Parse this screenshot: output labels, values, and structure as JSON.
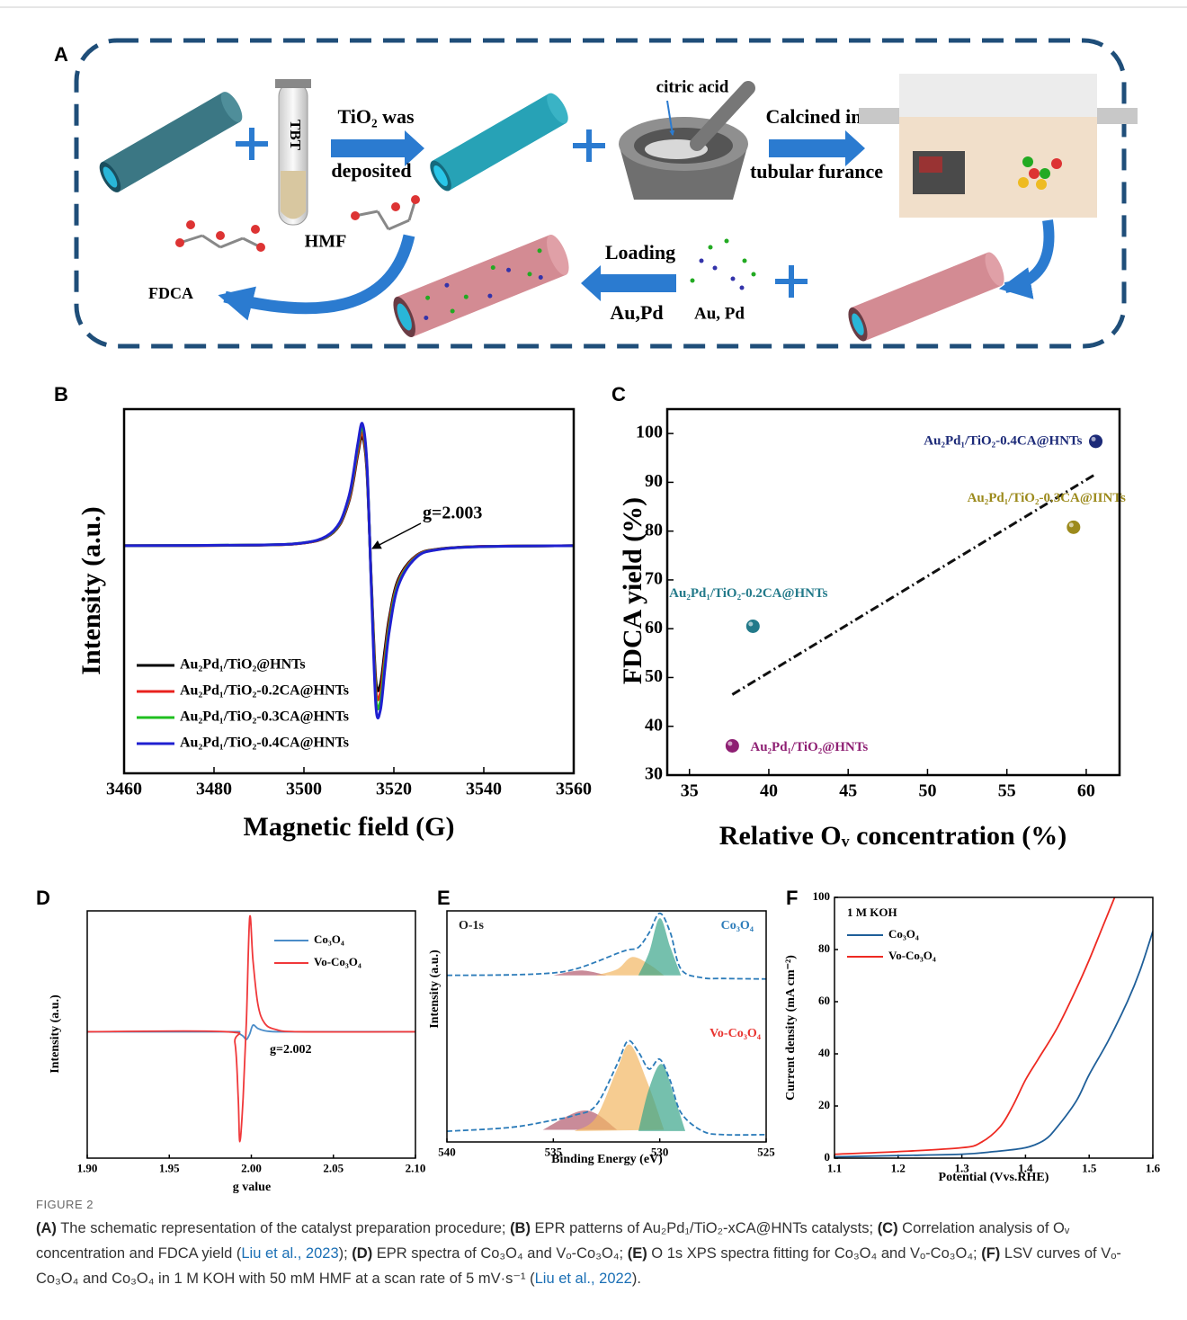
{
  "schematic": {
    "panel": "A",
    "tbt": "TBT",
    "step1_top": "TiO₂ was",
    "step1_bottom": "deposited",
    "citric": "citric acid",
    "step2_top": "Calcined in",
    "step2_bottom": "tubular furance",
    "hmf": "HMF",
    "fdca": "FDCA",
    "step3_top": "Loading",
    "step3_bottom": "Au,Pd",
    "metals": "Au, Pd"
  },
  "chart_data": [
    {
      "panel": "B",
      "type": "line",
      "xlabel": "Magnetic field (G)",
      "ylabel": "Intensity (a.u.)",
      "x": [
        3460,
        3490,
        3500,
        3505,
        3508,
        3510,
        3511,
        3512,
        3513,
        3514,
        3515,
        3516,
        3517,
        3518,
        3519,
        3521,
        3525,
        3530,
        3540,
        3560
      ],
      "xlim": [
        3460,
        3560
      ],
      "xticks": [
        3460,
        3480,
        3500,
        3520,
        3540,
        3560
      ],
      "ylim": [
        -1.25,
        0.75
      ],
      "legend": "lower left",
      "annotation": "g=2.003",
      "series": [
        {
          "name": "Au₂Pd₁/TiO₂@HNTs",
          "color": "#000000",
          "values": [
            0,
            0.003,
            0.015,
            0.046,
            0.116,
            0.242,
            0.357,
            0.504,
            0.6,
            0.406,
            -0.201,
            -0.742,
            -0.761,
            -0.572,
            -0.393,
            -0.184,
            -0.054,
            -0.018,
            -0.004,
            0
          ]
        },
        {
          "name": "Au₂Pd₁/TiO₂-0.2CA@HNTs",
          "color": "#e8211d",
          "values": [
            0,
            0.003,
            0.015,
            0.048,
            0.12,
            0.25,
            0.369,
            0.521,
            0.62,
            0.42,
            -0.213,
            -0.788,
            -0.808,
            -0.608,
            -0.417,
            -0.196,
            -0.057,
            -0.019,
            -0.004,
            0
          ]
        },
        {
          "name": "Au₂Pd₁/TiO₂-0.3CA@HNTs",
          "color": "#1fbf1f",
          "values": [
            0,
            0.004,
            0.016,
            0.05,
            0.125,
            0.263,
            0.387,
            0.546,
            0.65,
            0.44,
            -0.226,
            -0.834,
            -0.856,
            -0.644,
            -0.442,
            -0.207,
            -0.061,
            -0.02,
            -0.005,
            0
          ]
        },
        {
          "name": "Au₂Pd₁/TiO₂-0.4CA@HNTs",
          "color": "#2020d0",
          "values": [
            0,
            0.004,
            0.016,
            0.052,
            0.129,
            0.271,
            0.399,
            0.563,
            0.67,
            0.454,
            -0.238,
            -0.881,
            -0.903,
            -0.679,
            -0.466,
            -0.219,
            -0.064,
            -0.021,
            -0.005,
            0
          ]
        }
      ]
    },
    {
      "panel": "C",
      "type": "scatter",
      "xlabel": "Relative Oᵥ concentration (%)",
      "ylabel": "FDCA yield (%)",
      "xlim": [
        33.6,
        62.1
      ],
      "xticks": [
        35,
        40,
        45,
        50,
        55,
        60
      ],
      "ylim": [
        30,
        105
      ],
      "yticks": [
        30,
        40,
        50,
        60,
        70,
        80,
        90,
        100
      ],
      "trendline": {
        "x": [
          37.7,
          60.5
        ],
        "values": [
          46.5,
          91.5
        ]
      },
      "series": [
        {
          "name": "Au₂Pd₁/TiO₂@HNTs",
          "color": "#8e1f73",
          "x": [
            37.7
          ],
          "values": [
            36
          ]
        },
        {
          "name": "Au₂Pd₁/TiO₂-0.2CA@HNTs",
          "color": "#237a8a",
          "x": [
            39
          ],
          "values": [
            60.5
          ]
        },
        {
          "name": "Au₂Pd₁/TiO₂-0.3CA@IINTs",
          "color": "#9c8a1c",
          "x": [
            59.2
          ],
          "values": [
            80.8
          ]
        },
        {
          "name": "Au₂Pd₁/TiO₂-0.4CA@HNTs",
          "color": "#1c2a78",
          "x": [
            60.6
          ],
          "values": [
            98.4
          ]
        }
      ]
    },
    {
      "panel": "D",
      "type": "line",
      "xlabel": "g value",
      "ylabel": "Intensity (a.u.)",
      "x": [
        1.9,
        1.985,
        1.99,
        1.992,
        1.993,
        1.995,
        1.997,
        1.999,
        2.001,
        2.004,
        2.008,
        2.015,
        2.03,
        2.1
      ],
      "xlim": [
        1.9,
        2.1
      ],
      "xticks": [
        {
          "value": 1.9,
          "label": "1.90"
        },
        1.95,
        {
          "value": 2.0,
          "label": "2.00"
        },
        2.05,
        {
          "value": 2.1,
          "label": "2.10"
        }
      ],
      "ylim": [
        -1.15,
        1.1
      ],
      "legend": "upper right",
      "annotation": "g=2.002",
      "series": [
        {
          "name": "Co₃O₄",
          "color": "#4a8cc8",
          "values": [
            0,
            0,
            0,
            -0.01,
            -0.02,
            -0.04,
            -0.07,
            -0.02,
            0.06,
            0.03,
            0.01,
            0,
            0,
            0
          ]
        },
        {
          "name": "Vo-Co₃O₄",
          "color": "#f0383a",
          "values": [
            0,
            0,
            -0.1,
            -0.6,
            -1.0,
            -0.6,
            0.1,
            1.04,
            0.65,
            0.25,
            0.08,
            0.02,
            0,
            0
          ]
        }
      ]
    },
    {
      "panel": "E",
      "type": "xps",
      "xlabel": "Binding Energy (eV)",
      "ylabel": "Intensity (a.u.)",
      "xlim": [
        540,
        525
      ],
      "xticks": [
        540,
        535,
        530,
        525
      ],
      "ylim": [
        0,
        95
      ],
      "annotations": [
        {
          "text": "O-1s",
          "color": "#222222"
        },
        {
          "text": "Co₃O₄",
          "color": "#2b7bb9"
        },
        {
          "text": "Vo-Co₃O₄",
          "color": "#e8322e"
        }
      ],
      "series": [
        {
          "color": "#b25a6e",
          "fill": true,
          "x": [
            535,
            533.7,
            532.5
          ],
          "values": [
            68.5,
            70.5,
            68.5
          ]
        },
        {
          "color": "#f2b662",
          "fill": true,
          "x": [
            533,
            532,
            531.3,
            530.5,
            529.8
          ],
          "values": [
            68.5,
            71,
            76,
            73,
            68.5
          ]
        },
        {
          "color": "#3aa58a",
          "fill": true,
          "x": [
            531,
            530.5,
            530,
            529.5,
            529
          ],
          "values": [
            68.5,
            78,
            92,
            80,
            68.5
          ]
        },
        {
          "color": "#b25a6e",
          "fill": true,
          "x": [
            535.5,
            533.5,
            532
          ],
          "values": [
            5,
            13,
            5
          ]
        },
        {
          "color": "#f2b662",
          "fill": true,
          "x": [
            534,
            533,
            532,
            531.4,
            530.6,
            529.8
          ],
          "values": [
            4.5,
            10,
            30,
            40,
            25,
            5
          ]
        },
        {
          "color": "#3aa58a",
          "fill": true,
          "x": [
            531,
            530.5,
            529.9,
            529.3,
            528.8
          ],
          "values": [
            4.5,
            22,
            32,
            18,
            4.5
          ]
        },
        {
          "color": "#2b7bb9",
          "dashed": true,
          "x": [
            540,
            537,
            535,
            534,
            533,
            532,
            531.5,
            531,
            530.5,
            530,
            529.5,
            529,
            528,
            527,
            525
          ],
          "values": [
            68.5,
            68.7,
            69.5,
            71,
            74,
            77.5,
            79,
            80,
            86,
            94,
            86,
            71,
            67.5,
            67.2,
            67
          ]
        },
        {
          "color": "#2b7bb9",
          "dashed": true,
          "x": [
            540,
            537,
            535,
            534,
            533,
            532,
            531.5,
            531,
            530.5,
            530,
            529.5,
            529,
            528,
            527,
            525
          ],
          "values": [
            4.4,
            6,
            9,
            11,
            15,
            32,
            41.5,
            37,
            30,
            34,
            25,
            12,
            4.5,
            3,
            3
          ]
        }
      ]
    },
    {
      "panel": "F",
      "type": "line",
      "xlabel": "Potential (Vvs.RHE)",
      "ylabel": "Current density (mA cm⁻²)",
      "xlim": [
        1.1,
        1.6
      ],
      "xticks": [
        1.1,
        1.2,
        1.3,
        1.4,
        1.5,
        1.6
      ],
      "ylim": [
        0,
        100
      ],
      "yticks": [
        0,
        20,
        40,
        60,
        80,
        100
      ],
      "legend": "upper left",
      "legend_title": "1 M KOH",
      "series": [
        {
          "name": "Co₃O₄",
          "color": "#1f5f99",
          "x": [
            1.1,
            1.2,
            1.3,
            1.35,
            1.4,
            1.43,
            1.45,
            1.48,
            1.5,
            1.53,
            1.56,
            1.58,
            1.6
          ],
          "values": [
            0.5,
            1,
            1.5,
            2.5,
            4,
            7,
            12,
            22,
            32,
            45,
            60,
            72,
            87
          ]
        },
        {
          "name": "Vo-Co₃O₄",
          "color": "#ee2a22",
          "x": [
            1.1,
            1.2,
            1.3,
            1.33,
            1.36,
            1.38,
            1.4,
            1.42,
            1.45,
            1.48,
            1.5,
            1.52,
            1.54
          ],
          "values": [
            1.5,
            2.5,
            4,
            6,
            12,
            20,
            30,
            38,
            50,
            65,
            76,
            88,
            100
          ]
        }
      ]
    }
  ],
  "figure_label": "FIGURE 2",
  "caption": [
    {
      "text": "(A)",
      "style": "bold"
    },
    {
      "text": " The schematic representation of the catalyst preparation procedure; ",
      "style": "plain"
    },
    {
      "text": "(B)",
      "style": "bold"
    },
    {
      "text": " EPR patterns of Au₂Pd₁/TiO₂-xCA@HNTs catalysts; ",
      "style": "plain"
    },
    {
      "text": "(C)",
      "style": "bold"
    },
    {
      "text": " Correlation analysis of Oᵥ concentration and FDCA yield (",
      "style": "plain"
    },
    {
      "text": "Liu et al., 2023",
      "style": "link"
    },
    {
      "text": "); ",
      "style": "plain"
    },
    {
      "text": "(D)",
      "style": "bold"
    },
    {
      "text": " EPR spectra of Co₃O₄ and Vₒ-Co₃O₄; ",
      "style": "plain"
    },
    {
      "text": "(E)",
      "style": "bold"
    },
    {
      "text": " O 1s XPS spectra fitting for Co₃O₄ and Vₒ-Co₃O₄; ",
      "style": "plain"
    },
    {
      "text": "(F)",
      "style": "bold"
    },
    {
      "text": " LSV curves of Vₒ-Co₃O₄ and Co₃O₄ in 1 M KOH with 50 mM HMF at a scan rate of 5 mV·s⁻¹ (",
      "style": "plain"
    },
    {
      "text": "Liu et al., 2022",
      "style": "link"
    },
    {
      "text": ").",
      "style": "plain"
    }
  ]
}
